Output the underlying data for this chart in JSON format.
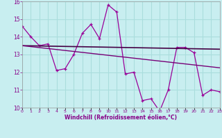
{
  "xlabel": "Windchill (Refroidissement éolien,°C)",
  "bg_color": "#c8eef0",
  "grid_color": "#aadddd",
  "line_color": "#990099",
  "x_min": 0,
  "x_max": 23,
  "y_min": 10,
  "y_max": 16,
  "series1_x": [
    0,
    1,
    2,
    3,
    4,
    5,
    6,
    7,
    8,
    9,
    10,
    11,
    12,
    13,
    14,
    15,
    16,
    17,
    18,
    19,
    20,
    21,
    22,
    23
  ],
  "series1_y": [
    14.6,
    14.0,
    13.5,
    13.6,
    12.1,
    12.2,
    13.0,
    14.2,
    14.7,
    13.9,
    15.8,
    15.4,
    11.9,
    12.0,
    10.4,
    10.5,
    9.8,
    11.0,
    13.4,
    13.4,
    13.1,
    10.7,
    11.0,
    10.9
  ],
  "series2_x": [
    0,
    23
  ],
  "series2_y": [
    13.5,
    13.3
  ],
  "series3_x": [
    0,
    23
  ],
  "series3_y": [
    13.5,
    12.25
  ],
  "yticks": [
    10,
    11,
    12,
    13,
    14,
    15,
    16
  ],
  "xtick_labels": [
    "0",
    "1",
    "2",
    "3",
    "4",
    "5",
    "6",
    "7",
    "8",
    "9",
    "10",
    "11",
    "12",
    "13",
    "14",
    "15",
    "16",
    "17",
    "18",
    "19",
    "20",
    "21",
    "22",
    "23"
  ],
  "label_color": "#880088",
  "tick_color": "#880088"
}
